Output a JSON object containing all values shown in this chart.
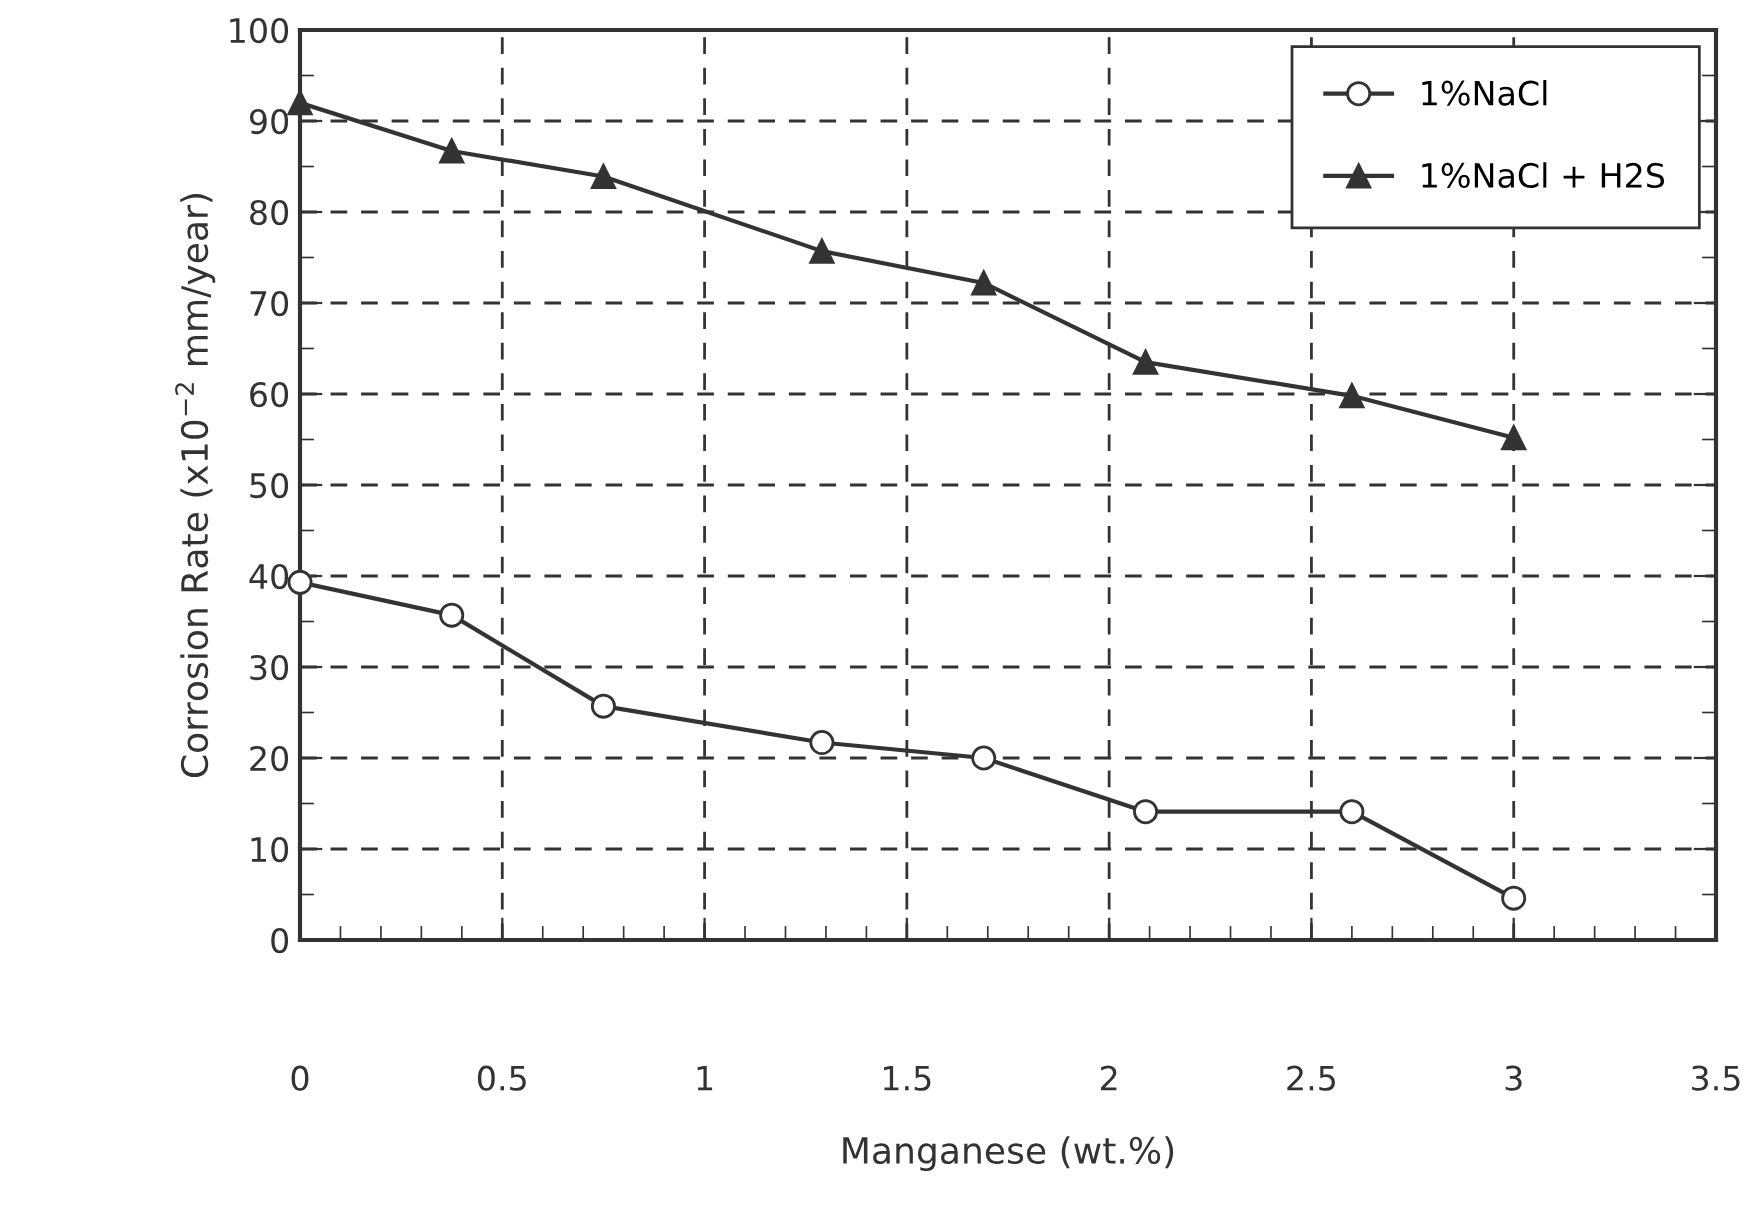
{
  "chart_data": {
    "type": "line",
    "xlabel": "Manganese (wt.%)",
    "ylabel": "Corrosion Rate (x10$^{−2}$ mm/year)",
    "xlim": [
      0,
      3.5
    ],
    "ylim": [
      0,
      100
    ],
    "xticks": [
      0,
      0.5,
      1,
      1.5,
      2,
      2.5,
      3,
      3.5
    ],
    "yticks": [
      0,
      10,
      20,
      30,
      40,
      50,
      60,
      70,
      80,
      90,
      100
    ],
    "grid": true,
    "legend": "top right",
    "line_style": "solid",
    "series": [
      {
        "name": "1%NaCl",
        "color": "#333333",
        "marker": "circle",
        "x": [
          0,
          0.375,
          0.75,
          1.29,
          1.69,
          2.09,
          2.6,
          3.0
        ],
        "values": [
          39.3,
          35.7,
          25.7,
          21.7,
          20,
          14.1,
          14.1,
          4.6
        ]
      },
      {
        "name": "1%NaCl + H2S",
        "color": "#333333",
        "marker": "triangle",
        "x": [
          0,
          0.375,
          0.75,
          1.29,
          1.69,
          2.09,
          2.6,
          3.0
        ],
        "values": [
          92,
          86.7,
          83.9,
          75.7,
          72.2,
          63.5,
          59.8,
          55.2
        ]
      }
    ]
  }
}
